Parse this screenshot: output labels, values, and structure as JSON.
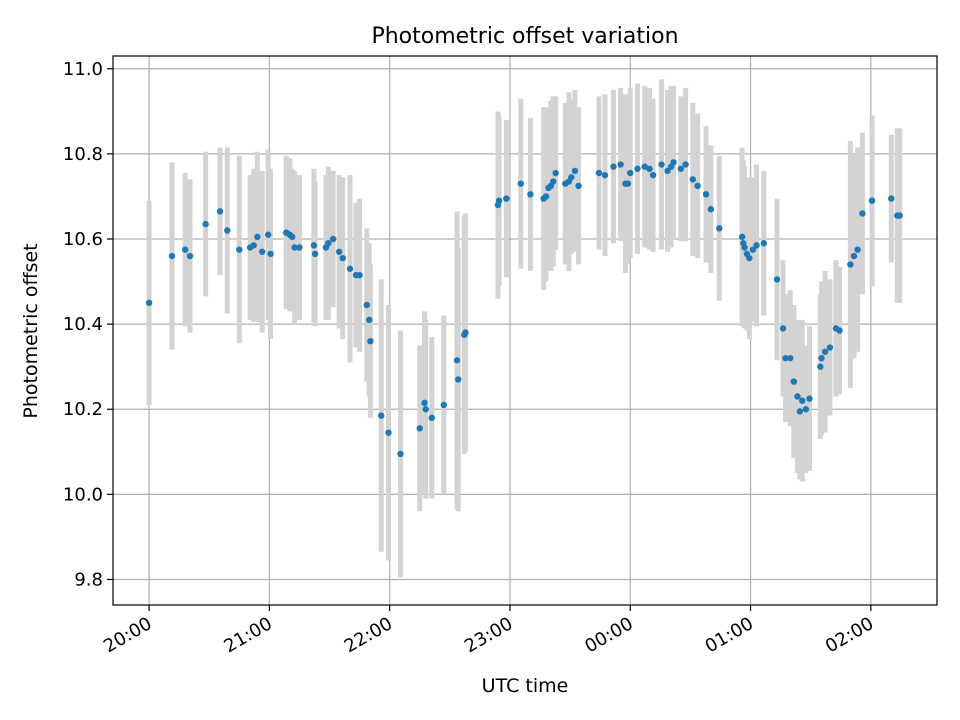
{
  "chart_data": {
    "type": "scatter",
    "title": "Photometric offset variation",
    "xlabel": "UTC time",
    "ylabel": "Photometric offset",
    "x_unit": "UTC time of day (hours; values past 24 are the next day)",
    "xlim": [
      19.7,
      26.55
    ],
    "ylim": [
      9.74,
      11.03
    ],
    "grid": true,
    "y_ticks": [
      9.8,
      10.0,
      10.2,
      10.4,
      10.6,
      10.8,
      11.0
    ],
    "y_tick_labels": [
      "9.8",
      "10.0",
      "10.2",
      "10.4",
      "10.6",
      "10.8",
      "11.0"
    ],
    "x_ticks": [
      20,
      21,
      22,
      23,
      24,
      25,
      26
    ],
    "x_tick_labels": [
      "20:00",
      "21:00",
      "22:00",
      "23:00",
      "00:00",
      "01:00",
      "02:00"
    ],
    "colors": {
      "points": "#1f77b4",
      "error_bars": "#d3d3d3",
      "grid": "#b0b0b0"
    },
    "series": [
      {
        "x": [
          20.0,
          20.19,
          20.3,
          20.34,
          20.47,
          20.59,
          20.65,
          20.75,
          20.84,
          20.87,
          20.9,
          20.94,
          20.99,
          21.01,
          21.14,
          21.17,
          21.19,
          21.21,
          21.25,
          21.37,
          21.38,
          21.47,
          21.49,
          21.53,
          21.58,
          21.61,
          21.67,
          21.72,
          21.75,
          21.81,
          21.83,
          21.84,
          21.93,
          21.99,
          22.09,
          22.25,
          22.29,
          22.3,
          22.35,
          22.45,
          22.56,
          22.57,
          22.62,
          22.63,
          22.9,
          22.91,
          22.97,
          23.09,
          23.17,
          23.28,
          23.3,
          23.32,
          23.34,
          23.36,
          23.38,
          23.46,
          23.49,
          23.51,
          23.54,
          23.57,
          23.74,
          23.79,
          23.86,
          23.92,
          23.96,
          23.98,
          24.0,
          24.06,
          24.12,
          24.16,
          24.19,
          24.26,
          24.31,
          24.34,
          24.36,
          24.42,
          24.46,
          24.52,
          24.56,
          24.63,
          24.67,
          24.74,
          24.93,
          24.94,
          24.95,
          24.97,
          24.99,
          25.02,
          25.05,
          25.11,
          25.22,
          25.27,
          25.29,
          25.33,
          25.36,
          25.39,
          25.41,
          25.43,
          25.46,
          25.49,
          25.58,
          25.59,
          25.62,
          25.66,
          25.71,
          25.74,
          25.83,
          25.86,
          25.89,
          25.93,
          26.01,
          26.17,
          26.22,
          26.24
        ],
        "y": [
          10.45,
          10.56,
          10.575,
          10.56,
          10.635,
          10.665,
          10.62,
          10.575,
          10.58,
          10.585,
          10.605,
          10.57,
          10.61,
          10.565,
          10.615,
          10.61,
          10.605,
          10.58,
          10.58,
          10.585,
          10.565,
          10.58,
          10.59,
          10.6,
          10.57,
          10.555,
          10.53,
          10.515,
          10.515,
          10.445,
          10.41,
          10.36,
          10.185,
          10.145,
          10.095,
          10.155,
          10.215,
          10.2,
          10.18,
          10.21,
          10.315,
          10.27,
          10.375,
          10.38,
          10.68,
          10.69,
          10.695,
          10.73,
          10.705,
          10.695,
          10.7,
          10.72,
          10.725,
          10.735,
          10.755,
          10.73,
          10.735,
          10.745,
          10.76,
          10.725,
          10.755,
          10.75,
          10.77,
          10.775,
          10.73,
          10.73,
          10.755,
          10.765,
          10.77,
          10.765,
          10.75,
          10.775,
          10.76,
          10.77,
          10.78,
          10.765,
          10.775,
          10.74,
          10.725,
          10.705,
          10.67,
          10.625,
          10.605,
          10.59,
          10.58,
          10.565,
          10.555,
          10.575,
          10.585,
          10.59,
          10.505,
          10.39,
          10.32,
          10.32,
          10.265,
          10.23,
          10.195,
          10.22,
          10.2,
          10.225,
          10.3,
          10.32,
          10.335,
          10.345,
          10.39,
          10.385,
          10.54,
          10.56,
          10.575,
          10.66,
          10.69,
          10.695,
          10.655,
          10.655
        ],
        "err": [
          0.24,
          0.22,
          0.18,
          0.18,
          0.17,
          0.15,
          0.195,
          0.22,
          0.17,
          0.18,
          0.2,
          0.19,
          0.2,
          0.2,
          0.18,
          0.18,
          0.16,
          0.18,
          0.17,
          0.18,
          0.17,
          0.17,
          0.18,
          0.16,
          0.18,
          0.19,
          0.22,
          0.17,
          0.18,
          0.18,
          0.18,
          0.18,
          0.32,
          0.3,
          0.29,
          0.195,
          0.215,
          0.21,
          0.19,
          0.21,
          0.35,
          0.31,
          0.28,
          0.28,
          0.22,
          0.2,
          0.185,
          0.2,
          0.18,
          0.215,
          0.2,
          0.19,
          0.2,
          0.2,
          0.18,
          0.19,
          0.21,
          0.18,
          0.19,
          0.185,
          0.18,
          0.19,
          0.18,
          0.18,
          0.21,
          0.19,
          0.2,
          0.2,
          0.19,
          0.19,
          0.18,
          0.2,
          0.19,
          0.19,
          0.18,
          0.17,
          0.18,
          0.18,
          0.17,
          0.16,
          0.15,
          0.17,
          0.21,
          0.195,
          0.19,
          0.18,
          0.19,
          0.17,
          0.19,
          0.17,
          0.19,
          0.16,
          0.15,
          0.16,
          0.18,
          0.18,
          0.16,
          0.19,
          0.15,
          0.17,
          0.17,
          0.18,
          0.19,
          0.16,
          0.16,
          0.15,
          0.29,
          0.24,
          0.24,
          0.19,
          0.2,
          0.15,
          0.205,
          0.205
        ]
      }
    ]
  }
}
